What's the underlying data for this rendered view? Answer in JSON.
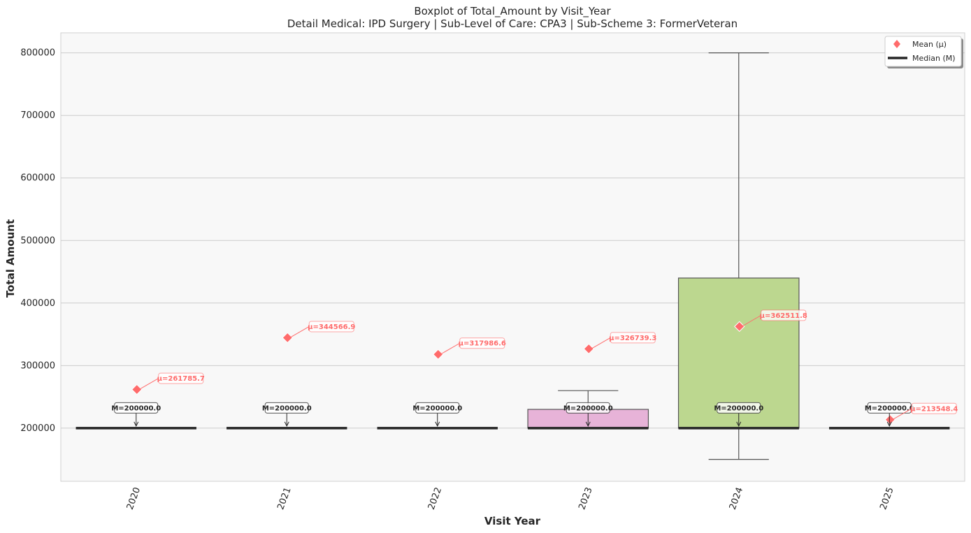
{
  "chart_data": {
    "type": "box",
    "title": "Boxplot of Total_Amount by Visit_Year",
    "subtitle": "Detail Medical: IPD Surgery | Sub-Level of Care: CPA3 | Sub-Scheme 3: FormerVeteran",
    "xlabel": "Visit Year",
    "ylabel": "Total Amount",
    "ylim": [
      115000,
      832000
    ],
    "yticks": [
      200000,
      300000,
      400000,
      500000,
      600000,
      700000,
      800000
    ],
    "grid": true,
    "legend_position": "top-right",
    "legend": [
      {
        "label": "Mean (μ)",
        "marker": "diamond",
        "color": "#ff6b6b"
      },
      {
        "label": "Median (M)",
        "marker": "line",
        "color": "#262626"
      }
    ],
    "categories": [
      "2020",
      "2021",
      "2022",
      "2023",
      "2024",
      "2025"
    ],
    "boxes": [
      {
        "year": "2020",
        "q1": 200000,
        "median": 200000,
        "q3": 200000,
        "whisker_low": 200000,
        "whisker_high": 200000,
        "mean": 261785.7,
        "color": "#8dd3c7",
        "median_label": "M=200000.0",
        "mean_label": "μ=261785.7"
      },
      {
        "year": "2021",
        "q1": 200000,
        "median": 200000,
        "q3": 200000,
        "whisker_low": 200000,
        "whisker_high": 200000,
        "mean": 344566.9,
        "color": "#ffffb3",
        "median_label": "M=200000.0",
        "mean_label": "μ=344566.9"
      },
      {
        "year": "2022",
        "q1": 200000,
        "median": 200000,
        "q3": 200000,
        "whisker_low": 200000,
        "whisker_high": 200000,
        "mean": 317986.6,
        "color": "#bebada",
        "median_label": "M=200000.0",
        "mean_label": "μ=317986.6"
      },
      {
        "year": "2023",
        "q1": 200000,
        "median": 200000,
        "q3": 230000,
        "whisker_low": 200000,
        "whisker_high": 260000,
        "mean": 326739.3,
        "color": "#e7b3d8",
        "median_label": "M=200000.0",
        "mean_label": "μ=326739.3"
      },
      {
        "year": "2024",
        "q1": 200000,
        "median": 200000,
        "q3": 440000,
        "whisker_low": 150000,
        "whisker_high": 800000,
        "mean": 362511.8,
        "color": "#bcd78f",
        "median_label": "M=200000.0",
        "mean_label": "μ=362511.8"
      },
      {
        "year": "2025",
        "q1": 200000,
        "median": 200000,
        "q3": 200000,
        "whisker_low": 200000,
        "whisker_high": 200000,
        "mean": 213548.4,
        "color": "#fdb462",
        "median_label": "M=200000.0",
        "mean_label": "μ=213548.4"
      }
    ],
    "colors": {
      "mean": "#ff6b6b",
      "median": "#262626",
      "grid": "#cccccc",
      "plot_bg": "#f8f8f8",
      "whisker": "#555555"
    }
  }
}
